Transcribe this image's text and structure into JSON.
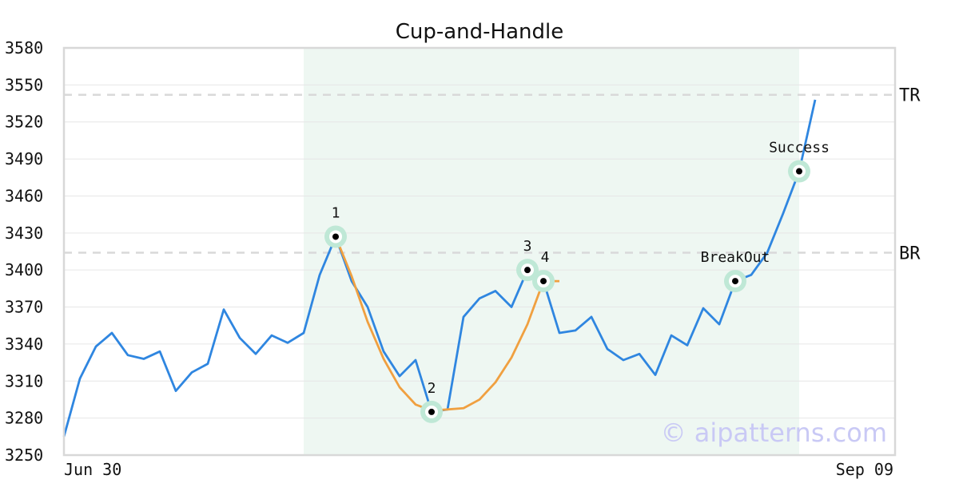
{
  "chart_data": {
    "type": "line",
    "title": "Cup-and-Handle",
    "xlabel": "",
    "ylabel": "",
    "ylim": [
      3250,
      3580
    ],
    "yticks": [
      3250,
      3280,
      3310,
      3340,
      3370,
      3400,
      3430,
      3460,
      3490,
      3520,
      3550,
      3580
    ],
    "x_tick_labels": [
      "Jun 30",
      "Sep 09"
    ],
    "grid": true,
    "series": [
      {
        "role": "price",
        "color": "#2f86e0",
        "values": [
          3265,
          3312,
          3338,
          3349,
          3331,
          3328,
          3334,
          3302,
          3317,
          3324,
          3368,
          3345,
          3332,
          3347,
          3341,
          3349,
          3396,
          3427,
          3391,
          3370,
          3334,
          3314,
          3327,
          3285,
          3287,
          3362,
          3377,
          3383,
          3370,
          3400,
          3391,
          3349,
          3351,
          3362,
          3336,
          3327,
          3332,
          3315,
          3347,
          3339,
          3369,
          3356,
          3391,
          3396,
          3414,
          3446,
          3480,
          3538
        ]
      },
      {
        "role": "cup-fit",
        "color": "#f0a040",
        "start_index": 17,
        "values": [
          3427,
          3395,
          3358,
          3328,
          3305,
          3291,
          3286,
          3287,
          3288,
          3295,
          3309,
          3329,
          3356,
          3391,
          3391
        ]
      }
    ],
    "levels": [
      {
        "label": "TR",
        "value": 3542
      },
      {
        "label": "BR",
        "value": 3414
      }
    ],
    "shaded_range": {
      "start_index": 15,
      "end_index": 46,
      "color": "#eef7f2"
    },
    "annotations": [
      {
        "label": "1",
        "index": 17,
        "value": 3427,
        "label_pos": "above"
      },
      {
        "label": "2",
        "index": 23,
        "value": 3285,
        "label_pos": "above"
      },
      {
        "label": "3",
        "index": 29,
        "value": 3400,
        "label_pos": "above"
      },
      {
        "label": "4",
        "index": 30,
        "value": 3391,
        "label_pos": "above-right"
      },
      {
        "label": "BreakOut",
        "index": 42,
        "value": 3391,
        "label_pos": "above"
      },
      {
        "label": "Success",
        "index": 46,
        "value": 3480,
        "label_pos": "above"
      }
    ],
    "marker_color": "#bfe8d6",
    "watermark": "© aipatterns.com"
  }
}
